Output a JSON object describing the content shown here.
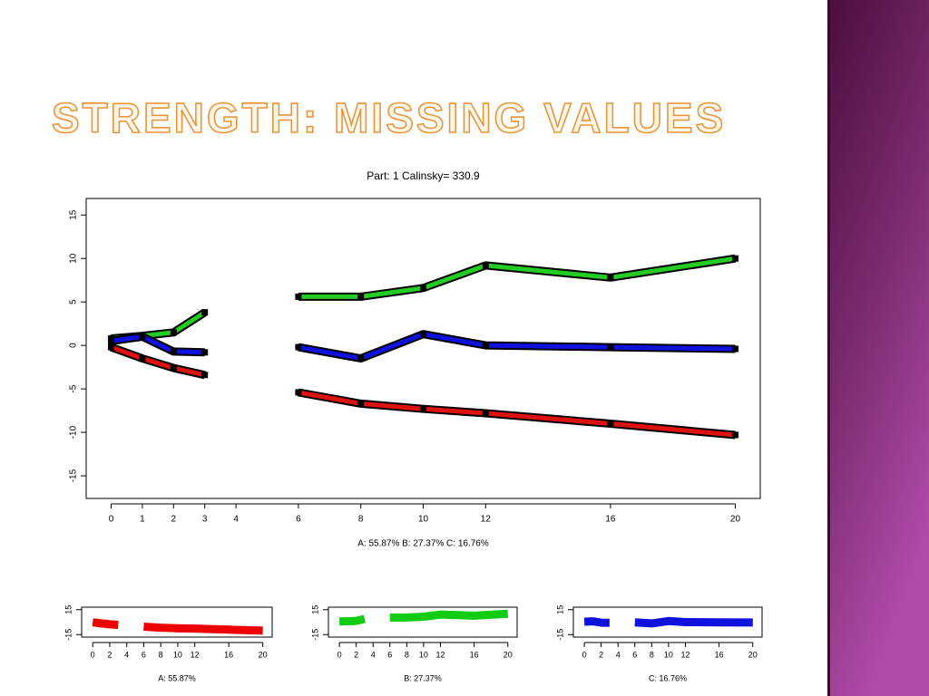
{
  "title": "STRENGTH: MISSING VALUES",
  "chart_data": [
    {
      "type": "line",
      "title": "Part:  1  Calinsky= 330.9",
      "xlabel": "A: 55.87%   B: 27.37%   C: 16.76%",
      "x": [
        0,
        1,
        2,
        3,
        4,
        6,
        8,
        10,
        12,
        16,
        20
      ],
      "xlim": [
        -0.8,
        20.8
      ],
      "xticks": [
        0,
        1,
        2,
        3,
        4,
        6,
        8,
        10,
        12,
        16,
        20
      ],
      "ylim": [
        -17.6,
        16.9
      ],
      "yticks": [
        -15,
        -10,
        -5,
        0,
        5,
        10,
        15
      ],
      "series": [
        {
          "name": "B",
          "color": "#22cc22",
          "values": [
            0.8,
            1.1,
            1.5,
            3.8,
            null,
            5.6,
            5.6,
            6.6,
            9.2,
            7.8,
            10.0
          ]
        },
        {
          "name": "C",
          "color": "#1111dd",
          "values": [
            0.5,
            1.0,
            -0.7,
            -0.8,
            null,
            -0.2,
            -1.5,
            1.3,
            0.0,
            -0.2,
            -0.4
          ]
        },
        {
          "name": "A",
          "color": "#dd1111",
          "values": [
            -0.2,
            -1.5,
            -2.6,
            -3.4,
            null,
            -5.4,
            -6.7,
            -7.3,
            -7.8,
            -9.0,
            -10.3
          ]
        }
      ]
    },
    {
      "type": "line",
      "xlabel": "A: 55.87%",
      "x": [
        0,
        1,
        2,
        3,
        4,
        6,
        8,
        10,
        12,
        16,
        20
      ],
      "xlim": [
        -1.3,
        21.1
      ],
      "xticks": [
        0,
        2,
        4,
        6,
        8,
        10,
        12,
        16,
        20
      ],
      "ylim": [
        -18,
        18
      ],
      "yticks": [
        -15,
        15
      ],
      "series": [
        {
          "name": "A",
          "color": "#ee0000",
          "values": [
            -0.2,
            -1.5,
            -2.6,
            -3.4,
            null,
            -5.4,
            -6.7,
            -7.3,
            -7.8,
            -9.0,
            -10.3
          ]
        }
      ]
    },
    {
      "type": "line",
      "xlabel": "B: 27.37%",
      "x": [
        0,
        1,
        2,
        3,
        4,
        6,
        8,
        10,
        12,
        16,
        20
      ],
      "xlim": [
        -1.3,
        21.1
      ],
      "xticks": [
        0,
        2,
        4,
        6,
        8,
        10,
        12,
        16,
        20
      ],
      "ylim": [
        -18,
        18
      ],
      "yticks": [
        -15,
        15
      ],
      "series": [
        {
          "name": "B",
          "color": "#11cc11",
          "values": [
            0.8,
            1.1,
            1.5,
            3.8,
            null,
            5.6,
            5.6,
            6.6,
            9.2,
            7.8,
            10.0
          ]
        }
      ]
    },
    {
      "type": "line",
      "xlabel": "C: 16.76%",
      "x": [
        0,
        1,
        2,
        3,
        4,
        6,
        8,
        10,
        12,
        16,
        20
      ],
      "xlim": [
        -1.3,
        21.1
      ],
      "xticks": [
        0,
        2,
        4,
        6,
        8,
        10,
        12,
        16,
        20
      ],
      "ylim": [
        -18,
        18
      ],
      "yticks": [
        -15,
        15
      ],
      "series": [
        {
          "name": "C",
          "color": "#1111dd",
          "values": [
            0.5,
            1.0,
            -0.7,
            -0.8,
            null,
            -0.2,
            -1.5,
            1.3,
            0.0,
            -0.2,
            -0.4
          ]
        }
      ]
    }
  ]
}
